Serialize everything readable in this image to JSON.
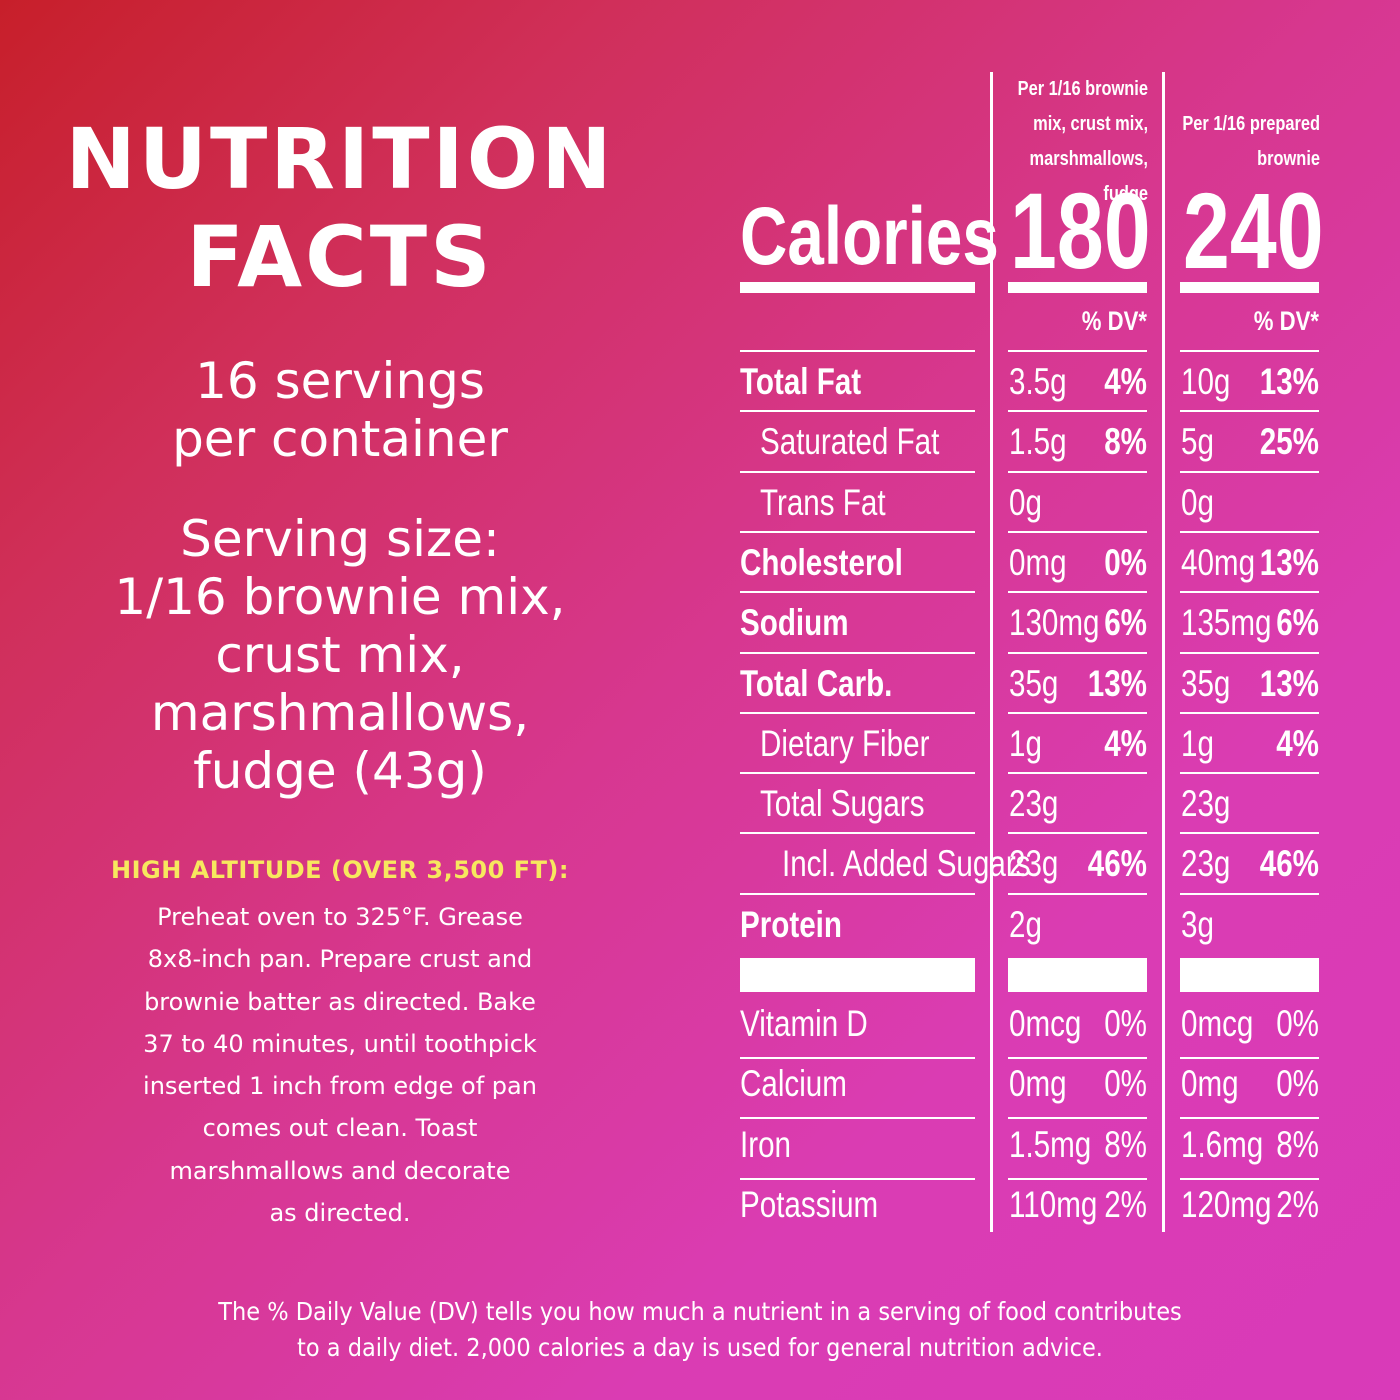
{
  "title": [
    "NUTRITION",
    "FACTS"
  ],
  "servings_per_container": [
    "16 servings",
    "per container"
  ],
  "serving_size": [
    "Serving size:",
    "1/16 brownie mix,",
    "crust mix,",
    "marshmallows,",
    "fudge (43g)"
  ],
  "high_altitude": {
    "heading": "HIGH ALTITUDE (OVER 3,500 FT):",
    "lines": [
      "Preheat oven to 325°F. Grease",
      "8x8-inch pan. Prepare crust and",
      "brownie batter as directed. Bake",
      "37 to 40 minutes, until toothpick",
      "inserted 1 inch from edge of pan",
      "comes out clean. Toast",
      "marshmallows and decorate",
      "as directed."
    ]
  },
  "table": {
    "column_headers": [
      [
        "Per 1/16 brownie",
        "mix, crust mix,",
        "marshmallows, fudge"
      ],
      [
        "Per 1/16 prepared",
        "brownie"
      ]
    ],
    "calories_label": "Calories",
    "calories": [
      "180",
      "240"
    ],
    "dv_header": "% DV*",
    "nutrients": [
      {
        "name": "Total Fat",
        "bold": true,
        "indent": 0,
        "c1": {
          "amt": "3.5g",
          "dv": "4%"
        },
        "c2": {
          "amt": "10g",
          "dv": "13%"
        }
      },
      {
        "name": "Saturated Fat",
        "bold": false,
        "indent": 1,
        "c1": {
          "amt": "1.5g",
          "dv": "8%"
        },
        "c2": {
          "amt": "5g",
          "dv": "25%"
        }
      },
      {
        "name": "Trans Fat",
        "bold": false,
        "indent": 1,
        "c1": {
          "amt": "0g",
          "dv": ""
        },
        "c2": {
          "amt": "0g",
          "dv": ""
        }
      },
      {
        "name": "Cholesterol",
        "bold": true,
        "indent": 0,
        "c1": {
          "amt": "0mg",
          "dv": "0%"
        },
        "c2": {
          "amt": "40mg",
          "dv": "13%"
        }
      },
      {
        "name": "Sodium",
        "bold": true,
        "indent": 0,
        "c1": {
          "amt": "130mg",
          "dv": "6%"
        },
        "c2": {
          "amt": "135mg",
          "dv": "6%"
        }
      },
      {
        "name": "Total Carb.",
        "bold": true,
        "indent": 0,
        "c1": {
          "amt": "35g",
          "dv": "13%"
        },
        "c2": {
          "amt": "35g",
          "dv": "13%"
        }
      },
      {
        "name": "Dietary Fiber",
        "bold": false,
        "indent": 1,
        "c1": {
          "amt": "1g",
          "dv": "4%"
        },
        "c2": {
          "amt": "1g",
          "dv": "4%"
        }
      },
      {
        "name": "Total Sugars",
        "bold": false,
        "indent": 1,
        "c1": {
          "amt": "23g",
          "dv": ""
        },
        "c2": {
          "amt": "23g",
          "dv": ""
        }
      },
      {
        "name": "Incl. Added Sugars",
        "bold": false,
        "indent": 2,
        "c1": {
          "amt": "23g",
          "dv": "46%"
        },
        "c2": {
          "amt": "23g",
          "dv": "46%"
        }
      },
      {
        "name": "Protein",
        "bold": true,
        "indent": 0,
        "c1": {
          "amt": "2g",
          "dv": ""
        },
        "c2": {
          "amt": "3g",
          "dv": ""
        }
      }
    ],
    "vitamins": [
      {
        "name": "Vitamin D",
        "c1": {
          "amt": "0mcg",
          "dv": "0%"
        },
        "c2": {
          "amt": "0mcg",
          "dv": "0%"
        }
      },
      {
        "name": "Calcium",
        "c1": {
          "amt": "0mg",
          "dv": "0%"
        },
        "c2": {
          "amt": "0mg",
          "dv": "0%"
        }
      },
      {
        "name": "Iron",
        "c1": {
          "amt": "1.5mg",
          "dv": "8%"
        },
        "c2": {
          "amt": "1.6mg",
          "dv": "8%"
        }
      },
      {
        "name": "Potassium",
        "c1": {
          "amt": "110mg",
          "dv": "2%"
        },
        "c2": {
          "amt": "120mg",
          "dv": "2%"
        }
      }
    ]
  },
  "footnote": [
    "The % Daily Value (DV) tells you how much a nutrient in a serving of food contributes",
    "to a daily diet. 2,000 calories a day is used for general nutrition advice."
  ],
  "colors": {
    "highlight": "#f7e85e",
    "text": "#ffffff"
  }
}
